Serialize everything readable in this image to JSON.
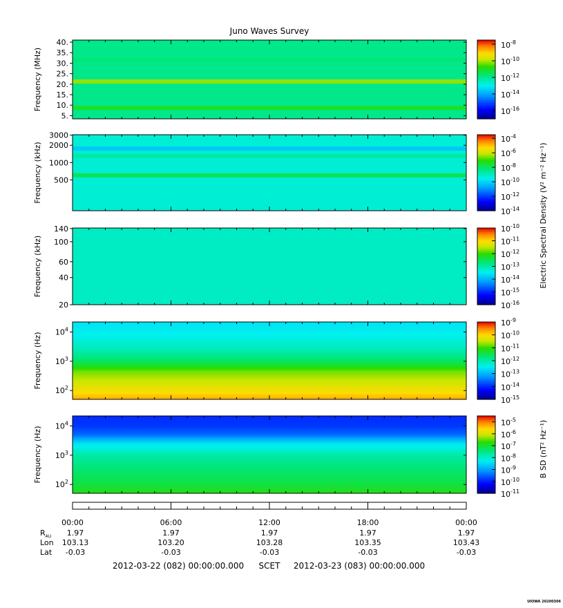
{
  "title": "Juno Waves Survey",
  "credit": "UIOWA 20200306",
  "colorbar_labels": {
    "electric": "Electric Spectral Density (V² m⁻² Hz⁻¹)",
    "magnetic": "B SD (nT² Hz⁻¹)"
  },
  "chart_data": [
    {
      "type": "heatmap",
      "ylabel": "Frequency (MHz)",
      "y_scale": "linear",
      "ylim": [
        3.5,
        41
      ],
      "yticks": [
        40,
        35,
        30,
        25,
        20,
        15,
        10,
        5
      ],
      "ytick_labels": [
        "40.",
        "35.",
        "30.",
        "25.",
        "20.",
        "15.",
        "10.",
        "5."
      ],
      "colorbar": {
        "scale": "log",
        "range": [
          -17,
          -7.5
        ],
        "ticks": [
          {
            "exp": -8,
            "label": "-8"
          },
          {
            "exp": -10,
            "label": "-10"
          },
          {
            "exp": -12,
            "label": "-12"
          },
          {
            "exp": -14,
            "label": "-14"
          },
          {
            "exp": -16,
            "label": "-16"
          }
        ]
      },
      "bands": [
        {
          "y": 21.3,
          "level": 0.72
        },
        {
          "y": 8.7,
          "level": 0.62
        },
        {
          "y": 31.5,
          "level": 0.55
        }
      ],
      "background_level": 0.53
    },
    {
      "type": "heatmap",
      "ylabel": "Frequency (kHz)",
      "y_scale": "log",
      "ylim": [
        145,
        3050
      ],
      "yticks": [
        3000,
        2000,
        1000,
        500
      ],
      "ytick_labels": [
        "3000",
        "2000",
        "1000",
        "500"
      ],
      "colorbar": {
        "scale": "log",
        "range": [
          -14,
          -3.5
        ],
        "ticks": [
          {
            "exp": -4,
            "label": "-4"
          },
          {
            "exp": -6,
            "label": "-6"
          },
          {
            "exp": -8,
            "label": "-8"
          },
          {
            "exp": -10,
            "label": "-10"
          },
          {
            "exp": -12,
            "label": "-12"
          },
          {
            "exp": -14,
            "label": "-14"
          }
        ]
      },
      "bands": [
        {
          "y": 1750,
          "level": 0.36
        },
        {
          "y": 600,
          "level": 0.58
        },
        {
          "y": 1300,
          "level": 0.5
        }
      ],
      "background_level": 0.45
    },
    {
      "type": "heatmap",
      "ylabel": "Frequency (kHz)",
      "y_scale": "log",
      "ylim": [
        20,
        142
      ],
      "yticks": [
        140,
        100,
        60,
        40,
        20
      ],
      "ytick_labels": [
        "140",
        "100",
        "60",
        "40",
        "20"
      ],
      "colorbar": {
        "scale": "log",
        "range": [
          -16,
          -10
        ],
        "ticks": [
          {
            "exp": -10,
            "label": "-10"
          },
          {
            "exp": -11,
            "label": "-11"
          },
          {
            "exp": -12,
            "label": "-12"
          },
          {
            "exp": -13,
            "label": "-13"
          },
          {
            "exp": -14,
            "label": "-14"
          },
          {
            "exp": -15,
            "label": "-15"
          },
          {
            "exp": -16,
            "label": "-16"
          }
        ]
      },
      "bands": [],
      "background_level": 0.47
    },
    {
      "type": "heatmap",
      "ylabel": "Frequency (Hz)",
      "y_scale": "log",
      "ylim": [
        50,
        22000
      ],
      "yticks": [
        10000,
        1000,
        100
      ],
      "ytick_labels": [
        {
          "base": "10",
          "exp": "4"
        },
        {
          "base": "10",
          "exp": "3"
        },
        {
          "base": "10",
          "exp": "2"
        }
      ],
      "colorbar": {
        "scale": "log",
        "range": [
          -15,
          -9
        ],
        "ticks": [
          {
            "exp": -9,
            "label": "-9"
          },
          {
            "exp": -10,
            "label": "-10"
          },
          {
            "exp": -11,
            "label": "-11"
          },
          {
            "exp": -12,
            "label": "-12"
          },
          {
            "exp": -13,
            "label": "-13"
          },
          {
            "exp": -14,
            "label": "-14"
          },
          {
            "exp": -15,
            "label": "-15"
          }
        ]
      },
      "profile": [
        [
          50,
          0.88
        ],
        [
          90,
          0.82
        ],
        [
          200,
          0.76
        ],
        [
          450,
          0.7
        ],
        [
          800,
          0.6
        ],
        [
          1500,
          0.53
        ],
        [
          3000,
          0.47
        ],
        [
          8000,
          0.42
        ],
        [
          22000,
          0.4
        ]
      ],
      "background_level": 0.45
    },
    {
      "type": "heatmap",
      "ylabel": "Frequency (Hz)",
      "y_scale": "log",
      "ylim": [
        50,
        22000
      ],
      "yticks": [
        10000,
        1000,
        100
      ],
      "ytick_labels": [
        {
          "base": "10",
          "exp": "4"
        },
        {
          "base": "10",
          "exp": "3"
        },
        {
          "base": "10",
          "exp": "2"
        }
      ],
      "colorbar": {
        "scale": "log",
        "range": [
          -11,
          -4.5
        ],
        "ticks": [
          {
            "exp": -5,
            "label": "-5"
          },
          {
            "exp": -6,
            "label": "-6"
          },
          {
            "exp": -7,
            "label": "-7"
          },
          {
            "exp": -8,
            "label": "-8"
          },
          {
            "exp": -9,
            "label": "-9"
          },
          {
            "exp": -10,
            "label": "-10"
          },
          {
            "exp": -11,
            "label": "-11"
          }
        ]
      },
      "profile": [
        [
          50,
          0.64
        ],
        [
          100,
          0.6
        ],
        [
          300,
          0.56
        ],
        [
          1000,
          0.5
        ],
        [
          2500,
          0.4
        ],
        [
          5000,
          0.24
        ],
        [
          10000,
          0.18
        ],
        [
          22000,
          0.17
        ]
      ],
      "background_level": 0.45
    }
  ],
  "time_axis": {
    "ticks": [
      "00:00",
      "06:00",
      "12:00",
      "18:00",
      "00:00"
    ],
    "rows": [
      {
        "label": "R",
        "sub": "AU",
        "values": [
          "1.97",
          "1.97",
          "1.97",
          "1.97",
          "1.97"
        ]
      },
      {
        "label": "Lon",
        "sub": "",
        "values": [
          "103.13",
          "103.20",
          "103.28",
          "103.35",
          "103.43"
        ]
      },
      {
        "label": "Lat",
        "sub": "",
        "values": [
          "-0.03",
          "-0.03",
          "-0.03",
          "-0.03",
          "-0.03"
        ]
      }
    ],
    "footer": {
      "start": "2012-03-22 (082) 00:00:00.000",
      "middle": "SCET",
      "end": "2012-03-23 (083) 00:00:00.000"
    }
  }
}
